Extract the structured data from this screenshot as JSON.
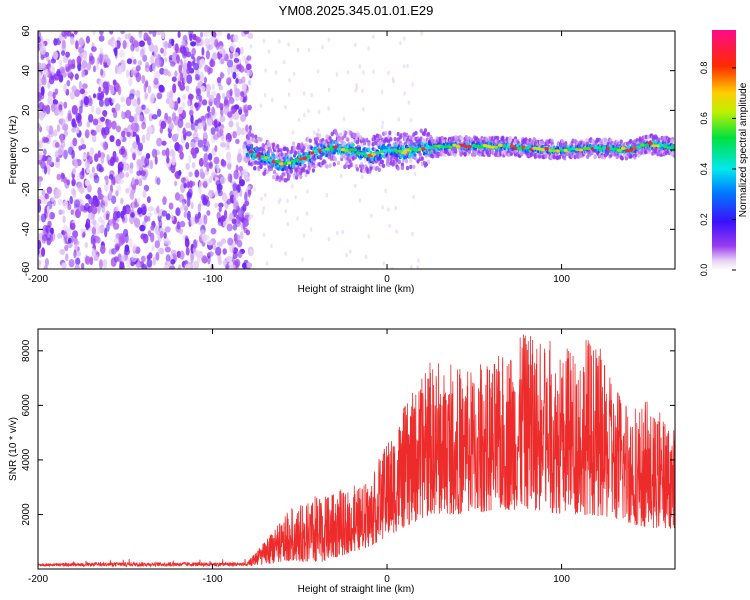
{
  "figure": {
    "title": "YM08.2025.345.01.01.E29"
  },
  "chart_data": [
    {
      "type": "heatmap",
      "title": "YM08.2025.345.01.01.E29",
      "xlabel": "Height of straight line (km)",
      "ylabel": "Frequency (Hz)",
      "xlim": [
        -200,
        165
      ],
      "ylim": [
        -60,
        60
      ],
      "xticks": [
        -200,
        -100,
        0,
        100
      ],
      "yticks": [
        -60,
        -40,
        -20,
        0,
        20,
        40,
        60
      ],
      "colorbar": {
        "label": "Normalized spectral amplitude",
        "range": [
          0,
          0.95
        ],
        "ticks": [
          0.0,
          0.2,
          0.4,
          0.6,
          0.8
        ],
        "tick_labels": [
          "0.0",
          "0.2",
          "0.4",
          "0.6",
          "0.8"
        ],
        "colormap": "rainbow (violet-blue-cyan-green-yellow-red-magenta)"
      },
      "features": {
        "noise_region_x": [
          -200,
          -80
        ],
        "noise_amplitude_typical": 0.05,
        "signal_start_x": -80,
        "signal_band_center_hz": [
          {
            "x": -80,
            "f": 0
          },
          {
            "x": -70,
            "f": -4
          },
          {
            "x": -60,
            "f": -7
          },
          {
            "x": -50,
            "f": -5
          },
          {
            "x": -40,
            "f": -1
          },
          {
            "x": -30,
            "f": 1
          },
          {
            "x": -20,
            "f": 0
          },
          {
            "x": -10,
            "f": -3
          },
          {
            "x": 0,
            "f": 0
          },
          {
            "x": 10,
            "f": -1
          },
          {
            "x": 20,
            "f": 1
          },
          {
            "x": 40,
            "f": 2
          },
          {
            "x": 60,
            "f": 2
          },
          {
            "x": 80,
            "f": 1
          },
          {
            "x": 100,
            "f": 0
          },
          {
            "x": 120,
            "f": 1
          },
          {
            "x": 140,
            "f": 0
          },
          {
            "x": 150,
            "f": 3
          },
          {
            "x": 165,
            "f": 1
          }
        ],
        "signal_peak_amplitude": 0.9
      },
      "grid": false
    },
    {
      "type": "line",
      "xlabel": "Height of straight line (km)",
      "ylabel": "SNR (10 * v/v)",
      "xlim": [
        -200,
        165
      ],
      "ylim": [
        0,
        8800
      ],
      "xticks": [
        -200,
        -100,
        0,
        100
      ],
      "yticks": [
        2000,
        4000,
        6000,
        8000
      ],
      "color": "#ee2b2b",
      "series": [
        {
          "envelope": [
            {
              "x": -200,
              "base": 100,
              "peak": 200
            },
            {
              "x": -150,
              "base": 100,
              "peak": 250
            },
            {
              "x": -80,
              "base": 100,
              "peak": 250
            },
            {
              "x": -65,
              "base": 200,
              "peak": 1400
            },
            {
              "x": -55,
              "base": 300,
              "peak": 2200
            },
            {
              "x": -40,
              "base": 200,
              "peak": 2600
            },
            {
              "x": -25,
              "base": 500,
              "peak": 2800
            },
            {
              "x": -10,
              "base": 800,
              "peak": 3200
            },
            {
              "x": 0,
              "base": 1200,
              "peak": 4600
            },
            {
              "x": 10,
              "base": 1500,
              "peak": 6000
            },
            {
              "x": 25,
              "base": 2000,
              "peak": 7500
            },
            {
              "x": 40,
              "base": 2000,
              "peak": 7200
            },
            {
              "x": 60,
              "base": 2100,
              "peak": 7600
            },
            {
              "x": 80,
              "base": 2200,
              "peak": 8700
            },
            {
              "x": 100,
              "base": 2000,
              "peak": 7800
            },
            {
              "x": 115,
              "base": 2000,
              "peak": 8700
            },
            {
              "x": 130,
              "base": 1800,
              "peak": 6800
            },
            {
              "x": 150,
              "base": 1500,
              "peak": 5800
            },
            {
              "x": 165,
              "base": 1500,
              "peak": 5200
            }
          ]
        }
      ],
      "grid": false
    }
  ]
}
